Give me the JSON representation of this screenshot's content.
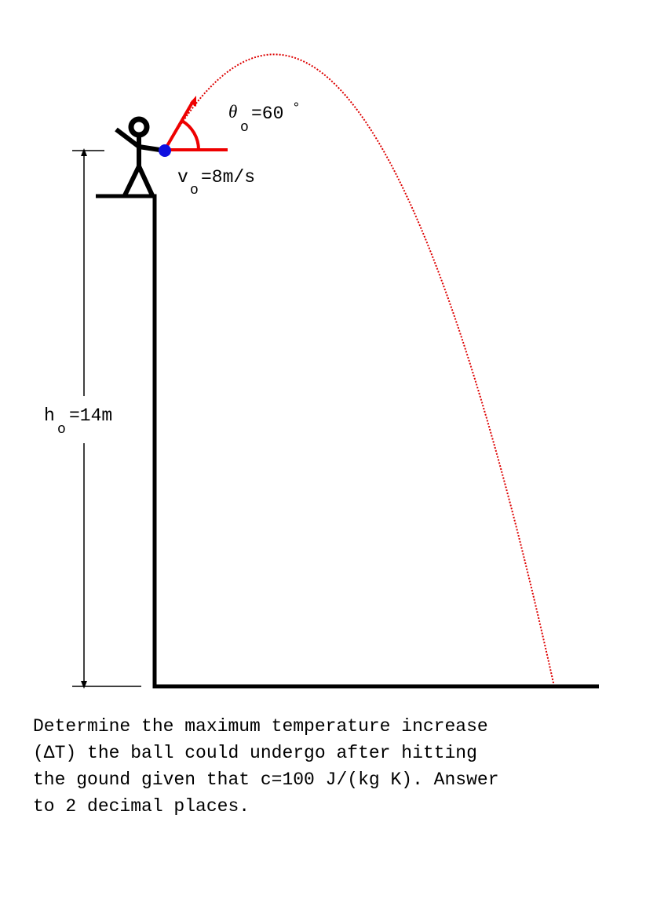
{
  "labels": {
    "angle": {
      "symbol": "θ",
      "subscript": "o",
      "text": "=60",
      "superscript": "°"
    },
    "velocity": {
      "symbol": "v",
      "subscript": "o",
      "text": "=8m/s"
    },
    "height": {
      "symbol": "h",
      "subscript": "o",
      "text": "=14m"
    }
  },
  "question": {
    "lines": [
      "Determine the maximum temperature increase",
      "(ΔT) the ball could undergo after hitting",
      "the gound given that c=100 J/(kg K). Answer",
      "to 2 decimal places."
    ]
  }
}
